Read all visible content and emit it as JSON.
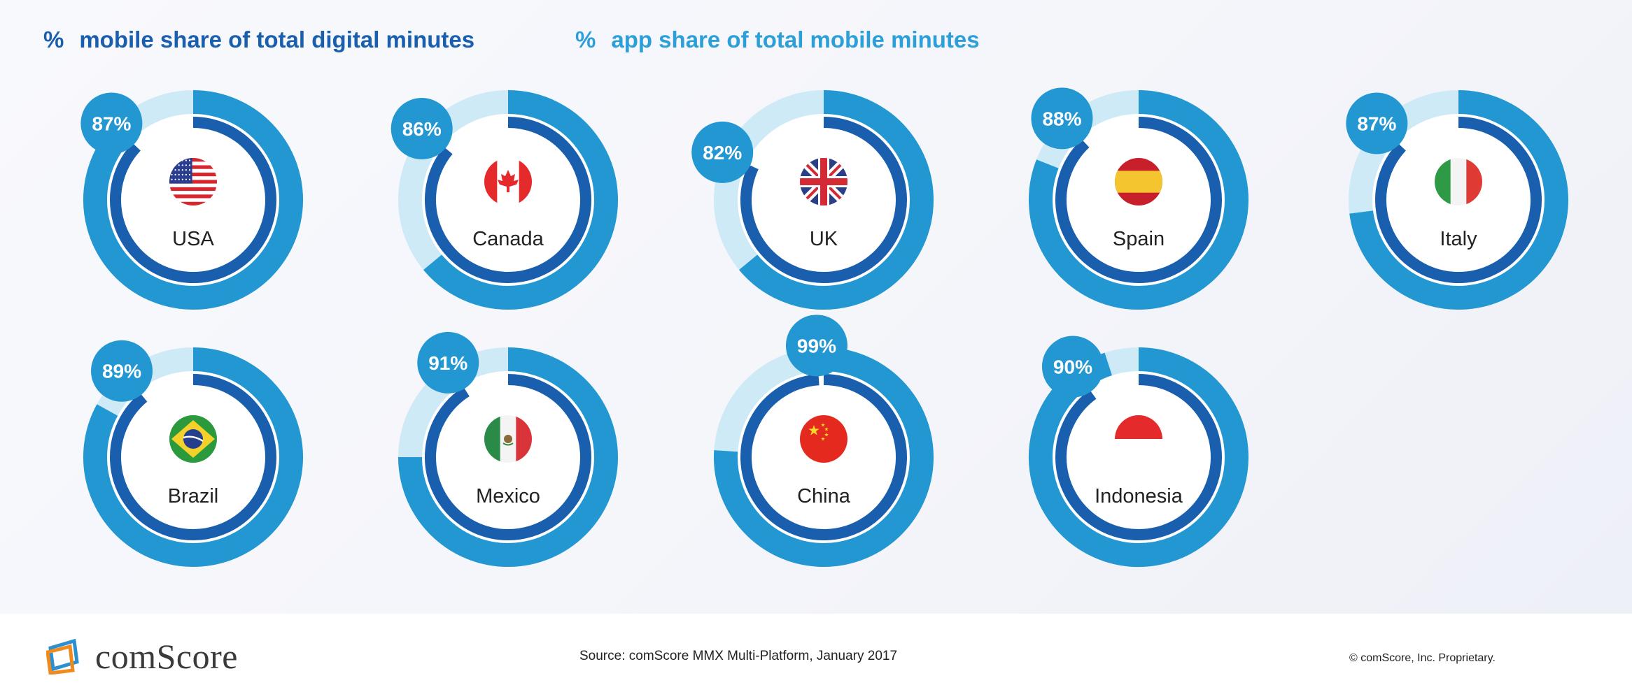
{
  "legend": {
    "mobile_symbol": "%",
    "mobile_label": "mobile share of total digital minutes",
    "app_symbol": "%",
    "app_label": "app share of total mobile minutes"
  },
  "colors": {
    "mobile_ring": "#2397d2",
    "app_ring": "#1a5fae",
    "ring_track": "#cfeaf7",
    "badge": "#2397d2"
  },
  "chart_data": {
    "type": "donut",
    "series": [
      {
        "name": "mobile share of total digital minutes"
      },
      {
        "name": "app share of total mobile minutes"
      }
    ],
    "countries": [
      {
        "name": "USA",
        "flag": "usa-flag",
        "mobile_share": 85,
        "app_share": 87
      },
      {
        "name": "Canada",
        "flag": "canada-flag",
        "mobile_share": 64,
        "app_share": 86
      },
      {
        "name": "UK",
        "flag": "uk-flag",
        "mobile_share": 64,
        "app_share": 82
      },
      {
        "name": "Spain",
        "flag": "spain-flag",
        "mobile_share": 81,
        "app_share": 88
      },
      {
        "name": "Italy",
        "flag": "italy-flag",
        "mobile_share": 73,
        "app_share": 87
      },
      {
        "name": "Brazil",
        "flag": "brazil-flag",
        "mobile_share": 83,
        "app_share": 89
      },
      {
        "name": "Mexico",
        "flag": "mexico-flag",
        "mobile_share": 75,
        "app_share": 91
      },
      {
        "name": "China",
        "flag": "china-flag",
        "mobile_share": 76,
        "app_share": 99
      },
      {
        "name": "Indonesia",
        "flag": "indonesia-flag",
        "mobile_share": 95,
        "app_share": 90
      }
    ]
  },
  "footer": {
    "logo_text": "comScore",
    "source": "Source: comScore MMX Multi-Platform, January 2017",
    "copyright": "© comScore, Inc. Proprietary."
  }
}
